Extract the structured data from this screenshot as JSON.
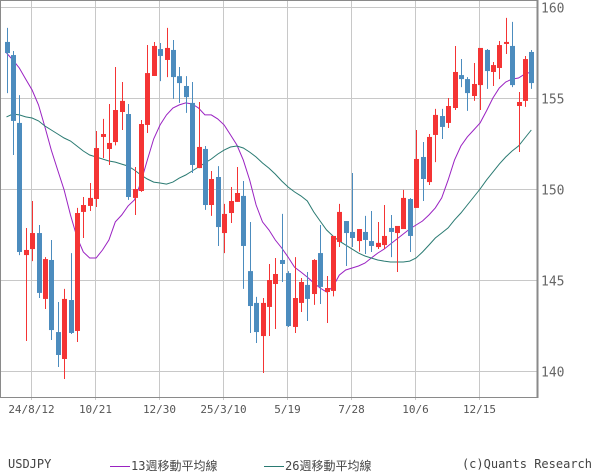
{
  "chart_data": {
    "type": "candlestick",
    "title": "",
    "symbol": "USDJPY",
    "ylim": [
      139.6,
      160.4
    ],
    "y_ticks": [
      140,
      145,
      150,
      155,
      160
    ],
    "y_axis_side": "right",
    "grid": true,
    "x_ticks": [
      {
        "date": "2024-08-12",
        "label": "24/8/12"
      },
      {
        "date": "2024-10-21",
        "label": "10/21"
      },
      {
        "date": "2024-12-30",
        "label": "12/30"
      },
      {
        "date": "2025-03-10",
        "label": "25/3/10"
      },
      {
        "date": "2025-05-19",
        "label": "5/19"
      },
      {
        "date": "2025-07-28",
        "label": "7/28"
      },
      {
        "date": "2025-10-06",
        "label": "10/6"
      },
      {
        "date": "2025-12-15",
        "label": "12/15"
      }
    ],
    "up_color": "#f43434",
    "down_color": "#4c8cbe",
    "candle_fields": [
      "date",
      "open",
      "high",
      "low",
      "close"
    ],
    "candles": [
      [
        "2024-07-15",
        158.08,
        158.85,
        155.27,
        157.47
      ],
      [
        "2024-07-22",
        157.36,
        157.58,
        151.87,
        153.74
      ],
      [
        "2024-07-29",
        153.63,
        155.16,
        146.37,
        146.54
      ],
      [
        "2024-08-05",
        146.37,
        147.86,
        141.65,
        146.65
      ],
      [
        "2024-08-12",
        146.7,
        149.34,
        146.04,
        147.58
      ],
      [
        "2024-08-19",
        147.58,
        148.02,
        144.01,
        144.29
      ],
      [
        "2024-08-26",
        143.96,
        146.26,
        143.41,
        146.15
      ],
      [
        "2024-09-02",
        146.1,
        147.2,
        141.7,
        142.25
      ],
      [
        "2024-09-09",
        142.14,
        143.79,
        140.22,
        140.88
      ],
      [
        "2024-09-16",
        140.66,
        144.51,
        139.56,
        143.96
      ],
      [
        "2024-09-23",
        143.9,
        146.48,
        142.03,
        142.09
      ],
      [
        "2024-09-30",
        142.2,
        148.96,
        141.59,
        148.68
      ],
      [
        "2024-10-07",
        148.74,
        149.56,
        147.31,
        149.12
      ],
      [
        "2024-10-14",
        149.07,
        150.33,
        148.79,
        149.51
      ],
      [
        "2024-10-21",
        149.45,
        153.19,
        149.01,
        152.25
      ],
      [
        "2024-10-28",
        152.86,
        153.85,
        151.7,
        153.02
      ],
      [
        "2024-11-04",
        152.2,
        154.67,
        151.32,
        152.53
      ],
      [
        "2024-11-11",
        152.58,
        156.7,
        152.4,
        154.34
      ],
      [
        "2024-11-18",
        154.23,
        155.88,
        153.24,
        154.84
      ],
      [
        "2024-11-25",
        154.12,
        154.67,
        149.4,
        149.56
      ],
      [
        "2024-12-02",
        149.51,
        151.21,
        148.57,
        150.0
      ],
      [
        "2024-12-09",
        149.89,
        153.79,
        149.84,
        153.57
      ],
      [
        "2024-12-16",
        153.52,
        157.91,
        153.08,
        156.37
      ],
      [
        "2024-12-23",
        156.21,
        158.08,
        156.21,
        157.86
      ],
      [
        "2024-12-30",
        157.69,
        158.02,
        155.93,
        157.31
      ],
      [
        "2025-01-06",
        157.09,
        158.85,
        156.15,
        157.75
      ],
      [
        "2025-01-13",
        157.64,
        158.19,
        154.95,
        156.15
      ],
      [
        "2025-01-20",
        156.2,
        156.7,
        154.73,
        155.82
      ],
      [
        "2025-01-27",
        155.66,
        156.2,
        154.18,
        155.05
      ],
      [
        "2025-02-03",
        154.73,
        155.88,
        150.88,
        151.32
      ],
      [
        "2025-02-10",
        151.15,
        154.78,
        151.15,
        152.31
      ],
      [
        "2025-02-17",
        152.2,
        152.36,
        148.85,
        149.12
      ],
      [
        "2025-02-24",
        149.12,
        150.99,
        148.52,
        150.55
      ],
      [
        "2025-03-03",
        150.66,
        151.26,
        146.87,
        147.91
      ],
      [
        "2025-03-10",
        147.58,
        149.18,
        146.48,
        148.63
      ],
      [
        "2025-03-17",
        148.68,
        150.11,
        148.13,
        149.34
      ],
      [
        "2025-03-24",
        149.29,
        151.21,
        149.29,
        149.78
      ],
      [
        "2025-03-31",
        149.62,
        150.44,
        144.51,
        146.87
      ],
      [
        "2025-04-07",
        145.49,
        148.19,
        142.09,
        143.57
      ],
      [
        "2025-04-14",
        143.74,
        144.07,
        141.54,
        142.14
      ],
      [
        "2025-04-21",
        141.92,
        144.01,
        139.89,
        143.74
      ],
      [
        "2025-04-28",
        143.52,
        145.88,
        141.92,
        145.0
      ],
      [
        "2025-05-05",
        144.78,
        146.21,
        142.31,
        145.33
      ],
      [
        "2025-05-12",
        146.1,
        148.63,
        144.89,
        145.88
      ],
      [
        "2025-05-19",
        145.38,
        145.49,
        142.42,
        142.47
      ],
      [
        "2025-05-26",
        142.42,
        146.26,
        142.09,
        144.01
      ],
      [
        "2025-06-02",
        143.74,
        145.11,
        143.24,
        144.89
      ],
      [
        "2025-06-09",
        144.73,
        145.44,
        142.75,
        143.96
      ],
      [
        "2025-06-16",
        144.23,
        146.15,
        143.63,
        146.1
      ],
      [
        "2025-06-23",
        146.48,
        148.02,
        143.68,
        144.62
      ],
      [
        "2025-06-30",
        144.34,
        145.22,
        142.64,
        144.56
      ],
      [
        "2025-07-07",
        144.4,
        147.42,
        144.1,
        147.42
      ],
      [
        "2025-07-14",
        147.09,
        149.18,
        146.81,
        148.74
      ],
      [
        "2025-07-21",
        148.24,
        148.24,
        145.77,
        147.58
      ],
      [
        "2025-07-28",
        147.64,
        150.88,
        146.81,
        147.31
      ],
      [
        "2025-08-04",
        147.14,
        147.8,
        146.56,
        147.8
      ],
      [
        "2025-08-11",
        147.64,
        148.52,
        146.43,
        147.2
      ],
      [
        "2025-08-18",
        147.14,
        148.79,
        146.54,
        146.87
      ],
      [
        "2025-08-25",
        146.81,
        148.19,
        146.7,
        147.04
      ],
      [
        "2025-09-01",
        146.92,
        149.12,
        146.7,
        147.42
      ],
      [
        "2025-09-08",
        147.86,
        148.57,
        146.26,
        147.64
      ],
      [
        "2025-09-15",
        147.58,
        147.97,
        145.44,
        147.97
      ],
      [
        "2025-09-22",
        147.8,
        149.95,
        147.8,
        149.51
      ],
      [
        "2025-09-29",
        149.45,
        149.5,
        146.54,
        147.42
      ],
      [
        "2025-10-06",
        148.96,
        153.24,
        148.96,
        151.65
      ],
      [
        "2025-10-13",
        151.76,
        152.58,
        149.34,
        150.55
      ],
      [
        "2025-10-20",
        150.38,
        153.02,
        150.22,
        152.86
      ],
      [
        "2025-10-27",
        152.97,
        154.4,
        151.48,
        154.07
      ],
      [
        "2025-11-03",
        154.01,
        154.4,
        152.75,
        153.41
      ],
      [
        "2025-11-10",
        153.63,
        155.0,
        153.35,
        154.56
      ],
      [
        "2025-11-17",
        154.45,
        157.86,
        154.34,
        156.43
      ],
      [
        "2025-11-24",
        156.26,
        157.14,
        155.6,
        156.04
      ],
      [
        "2025-12-01",
        156.04,
        156.15,
        154.29,
        155.27
      ],
      [
        "2025-12-08",
        155.11,
        156.92,
        154.84,
        155.77
      ],
      [
        "2025-12-15",
        155.71,
        157.75,
        154.34,
        157.75
      ],
      [
        "2025-12-22",
        157.64,
        157.69,
        155.5,
        156.48
      ],
      [
        "2025-12-29",
        156.43,
        156.98,
        155.66,
        156.81
      ],
      [
        "2026-01-05",
        156.65,
        158.13,
        156.04,
        157.91
      ],
      [
        "2026-01-12",
        157.97,
        159.4,
        157.42,
        158.08
      ],
      [
        "2026-01-19",
        157.86,
        159.18,
        155.6,
        155.71
      ],
      [
        "2026-01-26",
        154.56,
        155.33,
        152.03,
        154.78
      ],
      [
        "2026-02-02",
        154.84,
        157.31,
        154.51,
        157.14
      ],
      [
        "2026-02-09",
        157.53,
        157.64,
        155.5,
        155.82
      ]
    ],
    "series": [
      {
        "name": "13週移動平均線",
        "color": "#9a22c2",
        "values": [
          157.47,
          157.09,
          156.65,
          156.04,
          155.44,
          154.62,
          153.41,
          152.14,
          151.04,
          149.95,
          148.57,
          147.36,
          146.54,
          146.21,
          146.21,
          146.65,
          147.2,
          148.19,
          148.57,
          149.07,
          149.4,
          150.38,
          151.59,
          152.75,
          153.52,
          154.07,
          154.45,
          154.62,
          154.73,
          154.67,
          154.45,
          154.07,
          154.07,
          153.85,
          153.52,
          152.97,
          152.42,
          151.59,
          150.49,
          149.12,
          148.19,
          147.75,
          147.2,
          146.76,
          146.26,
          145.71,
          145.44,
          145.16,
          144.84,
          144.56,
          144.34,
          144.62,
          145.27,
          145.55,
          145.66,
          145.77,
          145.93,
          146.21,
          146.48,
          146.7,
          146.98,
          147.25,
          147.53,
          147.8,
          148.02,
          148.24,
          148.57,
          148.96,
          149.51,
          150.49,
          151.59,
          152.36,
          152.86,
          153.24,
          153.63,
          154.29,
          155.0,
          155.55,
          155.88,
          156.04,
          156.1,
          156.32,
          156.43
        ]
      },
      {
        "name": "26週移動平均線",
        "color": "#2a7a72",
        "values": [
          153.96,
          154.12,
          154.07,
          153.96,
          153.9,
          153.74,
          153.46,
          153.24,
          153.02,
          152.8,
          152.64,
          152.36,
          152.09,
          151.87,
          151.76,
          151.65,
          151.54,
          151.48,
          151.37,
          151.26,
          151.04,
          150.77,
          150.55,
          150.38,
          150.33,
          150.27,
          150.38,
          150.6,
          150.77,
          150.99,
          151.21,
          151.43,
          151.65,
          151.92,
          152.14,
          152.31,
          152.36,
          152.25,
          152.03,
          151.76,
          151.43,
          151.15,
          150.82,
          150.44,
          150.11,
          149.84,
          149.62,
          149.34,
          148.74,
          148.24,
          147.75,
          147.42,
          147.14,
          146.92,
          146.7,
          146.48,
          146.32,
          146.21,
          146.1,
          146.04,
          145.99,
          145.99,
          145.99,
          146.04,
          146.21,
          146.54,
          146.92,
          147.31,
          147.58,
          147.86,
          148.3,
          148.68,
          149.12,
          149.56,
          150.0,
          150.49,
          150.93,
          151.37,
          151.76,
          152.09,
          152.36,
          152.8,
          153.24
        ]
      }
    ]
  },
  "legend": {
    "symbol": "USDJPY",
    "ma13_label": "13週移動平均線",
    "ma26_label": "26週移動平均線",
    "copyright": "(c)Quants Research"
  }
}
